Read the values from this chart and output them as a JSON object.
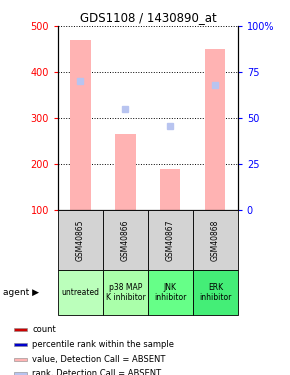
{
  "title": "GDS1108 / 1430890_at",
  "categories": [
    "GSM40865",
    "GSM40866",
    "GSM40867",
    "GSM40868"
  ],
  "agent_labels": [
    "untreated",
    "p38 MAP\nK inhibitor",
    "JNK\ninhibitor",
    "ERK\ninhibitor"
  ],
  "agent_colors": [
    "#bbffbb",
    "#aaffaa",
    "#66ff88",
    "#44ee77"
  ],
  "bar_values_absent": [
    470,
    265,
    190,
    450
  ],
  "rank_dots_absent": [
    380,
    320,
    283,
    373
  ],
  "ylim_left": [
    100,
    500
  ],
  "ylim_right": [
    0,
    100
  ],
  "yticks_left": [
    100,
    200,
    300,
    400,
    500
  ],
  "yticks_right": [
    0,
    25,
    50,
    75,
    100
  ],
  "bar_color_absent": "#ffb3b3",
  "rank_color_absent": "#b8c4f0",
  "legend_items": [
    {
      "label": "count",
      "color": "#cc0000"
    },
    {
      "label": "percentile rank within the sample",
      "color": "#0000cc"
    },
    {
      "label": "value, Detection Call = ABSENT",
      "color": "#ffb3b3"
    },
    {
      "label": "rank, Detection Call = ABSENT",
      "color": "#b8c4f0"
    }
  ],
  "fig_width": 2.9,
  "fig_height": 3.75,
  "dpi": 100
}
